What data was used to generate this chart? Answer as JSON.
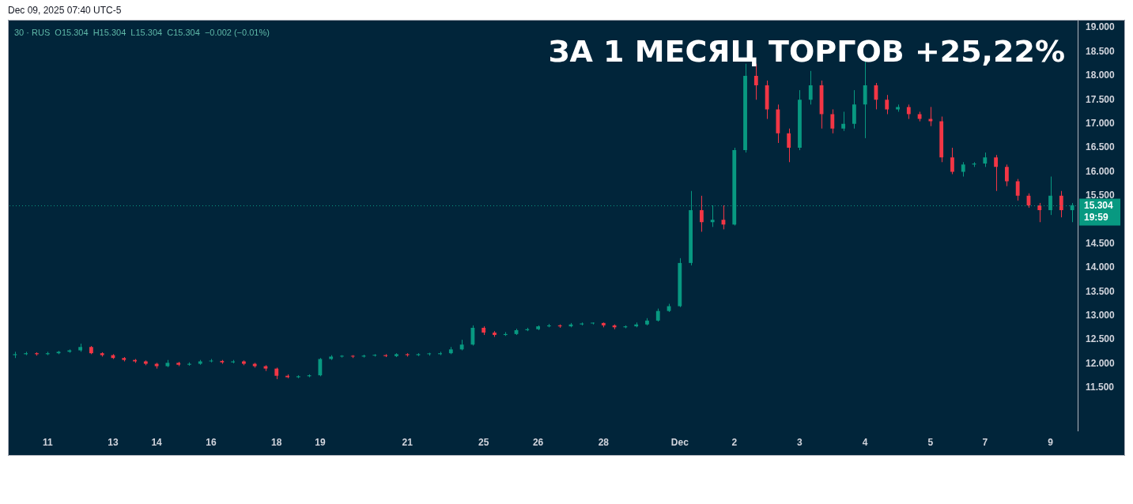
{
  "chart_data": {
    "type": "candlestick",
    "title": "ЗА 1 МЕСЯЦ ТОРГОВ +25,22%",
    "subtitle": "30 · RUS  O15.304  H15.304  L15.304  C15.304  −0.002 (−0.01%)",
    "annotations": [
      "Dec 09, 2025 07:40 UTC-5",
      "19:59"
    ],
    "categories": [
      null,
      null,
      null,
      "11",
      null,
      null,
      null,
      null,
      null,
      "13",
      null,
      null,
      null,
      "14",
      null,
      null,
      null,
      null,
      "16",
      null,
      null,
      null,
      null,
      null,
      "18",
      null,
      null,
      null,
      "19",
      null,
      null,
      null,
      null,
      null,
      null,
      null,
      "21",
      null,
      null,
      null,
      null,
      null,
      null,
      "25",
      null,
      null,
      null,
      null,
      "26",
      null,
      null,
      null,
      null,
      null,
      "28",
      null,
      null,
      null,
      null,
      null,
      null,
      "Dec",
      null,
      null,
      null,
      null,
      "2",
      null,
      null,
      null,
      null,
      null,
      "3",
      null,
      null,
      null,
      null,
      null,
      "4",
      null,
      null,
      null,
      null,
      null,
      "5",
      null,
      null,
      null,
      null,
      "7",
      null,
      null,
      null,
      null,
      null,
      "9",
      null,
      null
    ],
    "ohlc": [
      [
        12.18,
        12.25,
        12.12,
        12.2
      ],
      [
        12.2,
        12.25,
        12.18,
        12.22
      ],
      [
        12.22,
        12.24,
        12.17,
        12.2
      ],
      [
        12.2,
        12.25,
        12.18,
        12.22
      ],
      [
        12.22,
        12.27,
        12.2,
        12.25
      ],
      [
        12.25,
        12.3,
        12.23,
        12.28
      ],
      [
        12.28,
        12.42,
        12.25,
        12.35
      ],
      [
        12.35,
        12.37,
        12.2,
        12.22
      ],
      [
        12.22,
        12.24,
        12.15,
        12.18
      ],
      [
        12.18,
        12.2,
        12.1,
        12.12
      ],
      [
        12.12,
        12.14,
        12.05,
        12.08
      ],
      [
        12.08,
        12.1,
        12.02,
        12.05
      ],
      [
        12.05,
        12.07,
        11.97,
        12.0
      ],
      [
        12.0,
        12.02,
        11.9,
        11.95
      ],
      [
        11.95,
        12.08,
        11.93,
        12.02
      ],
      [
        12.02,
        12.04,
        11.95,
        11.98
      ],
      [
        11.98,
        12.03,
        11.96,
        12.0
      ],
      [
        12.0,
        12.08,
        11.98,
        12.05
      ],
      [
        12.05,
        12.1,
        12.03,
        12.06
      ],
      [
        12.06,
        12.08,
        12.0,
        12.03
      ],
      [
        12.03,
        12.08,
        12.01,
        12.05
      ],
      [
        12.05,
        12.07,
        11.97,
        12.0
      ],
      [
        12.0,
        12.02,
        11.92,
        11.95
      ],
      [
        11.95,
        11.97,
        11.85,
        11.9
      ],
      [
        11.9,
        11.92,
        11.68,
        11.75
      ],
      [
        11.75,
        11.78,
        11.7,
        11.72
      ],
      [
        11.72,
        11.76,
        11.7,
        11.74
      ],
      [
        11.74,
        11.78,
        11.72,
        11.76
      ],
      [
        11.76,
        12.12,
        11.74,
        12.1
      ],
      [
        12.1,
        12.18,
        12.08,
        12.15
      ],
      [
        12.15,
        12.18,
        12.13,
        12.16
      ],
      [
        12.16,
        12.18,
        12.12,
        12.15
      ],
      [
        12.15,
        12.19,
        12.13,
        12.17
      ],
      [
        12.17,
        12.2,
        12.15,
        12.18
      ],
      [
        12.18,
        12.2,
        12.14,
        12.16
      ],
      [
        12.16,
        12.22,
        12.14,
        12.2
      ],
      [
        12.2,
        12.22,
        12.15,
        12.18
      ],
      [
        12.18,
        12.22,
        12.16,
        12.2
      ],
      [
        12.2,
        12.23,
        12.17,
        12.2
      ],
      [
        12.2,
        12.25,
        12.18,
        12.22
      ],
      [
        12.22,
        12.35,
        12.2,
        12.3
      ],
      [
        12.3,
        12.5,
        12.28,
        12.4
      ],
      [
        12.4,
        12.8,
        12.38,
        12.75
      ],
      [
        12.75,
        12.78,
        12.6,
        12.65
      ],
      [
        12.65,
        12.68,
        12.56,
        12.6
      ],
      [
        12.6,
        12.66,
        12.58,
        12.62
      ],
      [
        12.62,
        12.73,
        12.6,
        12.7
      ],
      [
        12.7,
        12.75,
        12.68,
        12.72
      ],
      [
        12.72,
        12.8,
        12.7,
        12.78
      ],
      [
        12.78,
        12.83,
        12.76,
        12.8
      ],
      [
        12.8,
        12.82,
        12.75,
        12.78
      ],
      [
        12.78,
        12.85,
        12.76,
        12.82
      ],
      [
        12.82,
        12.86,
        12.8,
        12.84
      ],
      [
        12.84,
        12.86,
        12.82,
        12.85
      ],
      [
        12.85,
        12.86,
        12.76,
        12.8
      ],
      [
        12.8,
        12.82,
        12.72,
        12.76
      ],
      [
        12.76,
        12.8,
        12.74,
        12.78
      ],
      [
        12.78,
        12.86,
        12.76,
        12.82
      ],
      [
        12.82,
        12.95,
        12.8,
        12.9
      ],
      [
        12.9,
        13.15,
        12.88,
        13.1
      ],
      [
        13.1,
        13.25,
        13.08,
        13.2
      ],
      [
        13.2,
        14.2,
        13.18,
        14.1
      ],
      [
        14.1,
        15.6,
        14.05,
        15.2
      ],
      [
        15.2,
        15.5,
        14.75,
        14.95
      ],
      [
        14.95,
        15.3,
        14.85,
        15.0
      ],
      [
        15.0,
        15.3,
        14.8,
        14.9
      ],
      [
        14.9,
        16.5,
        14.88,
        16.45
      ],
      [
        16.45,
        18.25,
        16.4,
        18.0
      ],
      [
        18.0,
        18.25,
        17.5,
        17.8
      ],
      [
        17.8,
        17.9,
        17.1,
        17.3
      ],
      [
        17.3,
        17.4,
        16.6,
        16.8
      ],
      [
        16.8,
        16.9,
        16.2,
        16.5
      ],
      [
        16.5,
        17.7,
        16.45,
        17.5
      ],
      [
        17.5,
        18.1,
        17.4,
        17.8
      ],
      [
        17.8,
        17.9,
        16.9,
        17.2
      ],
      [
        17.2,
        17.3,
        16.8,
        16.9
      ],
      [
        16.9,
        17.25,
        16.85,
        17.0
      ],
      [
        17.0,
        17.7,
        16.9,
        17.4
      ],
      [
        17.4,
        18.3,
        16.7,
        17.8
      ],
      [
        17.8,
        17.85,
        17.3,
        17.5
      ],
      [
        17.5,
        17.6,
        17.2,
        17.3
      ],
      [
        17.3,
        17.4,
        17.25,
        17.35
      ],
      [
        17.35,
        17.4,
        17.1,
        17.2
      ],
      [
        17.2,
        17.25,
        17.05,
        17.1
      ],
      [
        17.1,
        17.35,
        16.95,
        17.05
      ],
      [
        17.05,
        17.15,
        16.2,
        16.3
      ],
      [
        16.3,
        16.5,
        15.95,
        16.0
      ],
      [
        16.0,
        16.2,
        15.9,
        16.15
      ],
      [
        16.15,
        16.2,
        16.1,
        16.17
      ],
      [
        16.17,
        16.4,
        16.1,
        16.3
      ],
      [
        16.3,
        16.35,
        15.6,
        16.1
      ],
      [
        16.1,
        16.15,
        15.7,
        15.8
      ],
      [
        15.8,
        15.85,
        15.4,
        15.5
      ],
      [
        15.5,
        15.55,
        15.25,
        15.3
      ],
      [
        15.3,
        15.35,
        14.95,
        15.2
      ],
      [
        15.2,
        15.9,
        15.1,
        15.5
      ],
      [
        15.5,
        15.6,
        15.05,
        15.2
      ],
      [
        15.2,
        15.35,
        14.95,
        15.304
      ]
    ],
    "ylim": [
      10.6,
      19.15
    ],
    "yticks": [
      {
        "value": 11.5,
        "label": "11.500"
      },
      {
        "value": 12,
        "label": "12.000"
      },
      {
        "value": 12.5,
        "label": "12.500"
      },
      {
        "value": 13,
        "label": "13.000"
      },
      {
        "value": 13.5,
        "label": "13.500"
      },
      {
        "value": 14,
        "label": "14.000"
      },
      {
        "value": 14.5,
        "label": "14.500"
      },
      {
        "value": 15.5,
        "label": "15.500"
      },
      {
        "value": 16,
        "label": "16.000"
      },
      {
        "value": 16.5,
        "label": "16.500"
      },
      {
        "value": 17,
        "label": "17.000"
      },
      {
        "value": 17.5,
        "label": "17.500"
      },
      {
        "value": 18,
        "label": "18.000"
      },
      {
        "value": 18.5,
        "label": "18.500"
      },
      {
        "value": 19,
        "label": "19.000"
      }
    ],
    "ref_lines": [
      {
        "axis": "y",
        "value": 15.304,
        "label": "15.304",
        "color": "#089981",
        "line_style": "dotted"
      }
    ],
    "grid": false,
    "legend": false
  }
}
